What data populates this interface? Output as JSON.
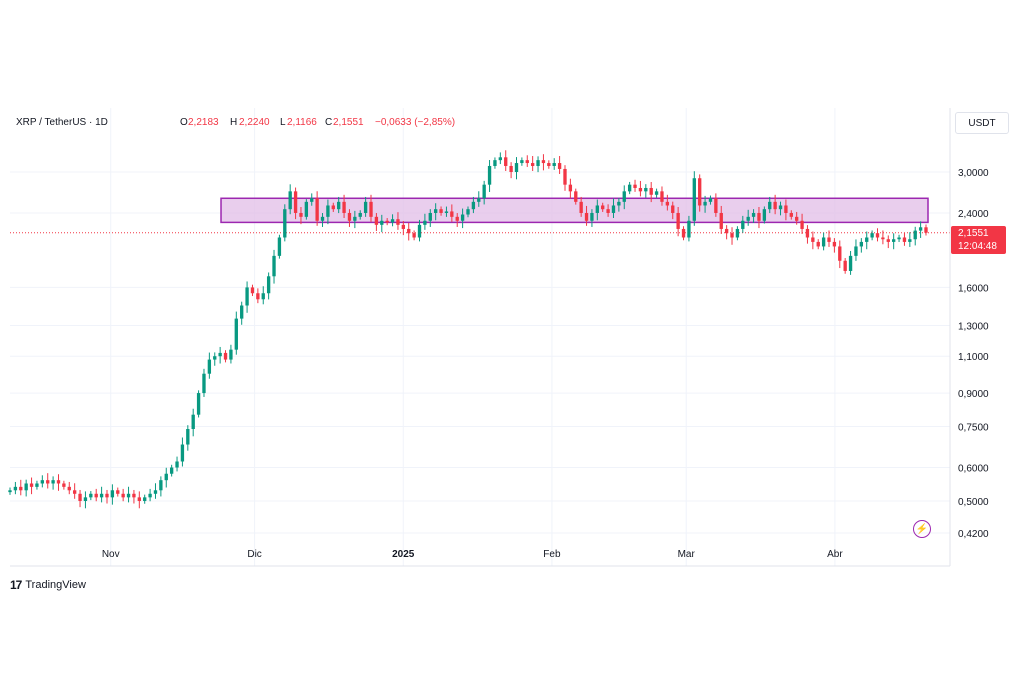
{
  "header": {
    "symbol": "XRP / TetherUS · 1D",
    "open_label": "O",
    "open": "2,2183",
    "high_label": "H",
    "high": "2,2240",
    "low_label": "L",
    "low": "2,1166",
    "close_label": "C",
    "close": "2,1551",
    "change": "−0,0633 (−2,85%)"
  },
  "unit": "USDT",
  "last_price": {
    "value": "2,1551",
    "countdown": "12:04:48",
    "color": "#f23645"
  },
  "brand": {
    "logo": "17",
    "name": "TradingView"
  },
  "colors": {
    "up": "#089981",
    "down": "#f23645",
    "zone_fill": "#e1bee7",
    "zone_stroke": "#9c27b0"
  },
  "chart_data": {
    "type": "candlestick",
    "y_scale": "log",
    "y_ticks": [
      {
        "value": 3.0,
        "label": "3,0000"
      },
      {
        "value": 2.4,
        "label": "2,4000"
      },
      {
        "value": 1.6,
        "label": "1,6000"
      },
      {
        "value": 1.3,
        "label": "1,3000"
      },
      {
        "value": 1.1,
        "label": "1,1000"
      },
      {
        "value": 0.9,
        "label": "0,9000"
      },
      {
        "value": 0.75,
        "label": "0,7500"
      },
      {
        "value": 0.6,
        "label": "0,6000"
      },
      {
        "value": 0.5,
        "label": "0,5000"
      },
      {
        "value": 0.42,
        "label": "0,4200"
      }
    ],
    "x_ticks": [
      {
        "date": "2024-11-01",
        "label": "Nov",
        "bold": false
      },
      {
        "date": "2024-12-01",
        "label": "Dic",
        "bold": false
      },
      {
        "date": "2025-01-01",
        "label": "2025",
        "bold": true
      },
      {
        "date": "2025-02-01",
        "label": "Feb",
        "bold": false
      },
      {
        "date": "2025-03-01",
        "label": "Mar",
        "bold": false
      },
      {
        "date": "2025-04-01",
        "label": "Abr",
        "bold": false
      }
    ],
    "x_range": [
      "2024-10-11",
      "2025-04-20"
    ],
    "ylim": [
      0.4,
      3.6
    ],
    "zone": {
      "from_date": "2024-11-24",
      "to_date": "2025-04-20",
      "low": 2.28,
      "high": 2.6
    },
    "last_close_line": 2.1551,
    "closes": [
      0.53,
      0.54,
      0.53,
      0.55,
      0.54,
      0.55,
      0.56,
      0.55,
      0.56,
      0.55,
      0.54,
      0.53,
      0.52,
      0.5,
      0.51,
      0.52,
      0.51,
      0.52,
      0.51,
      0.53,
      0.52,
      0.51,
      0.52,
      0.51,
      0.5,
      0.51,
      0.52,
      0.53,
      0.56,
      0.58,
      0.6,
      0.62,
      0.68,
      0.74,
      0.8,
      0.9,
      1.0,
      1.08,
      1.1,
      1.12,
      1.08,
      1.14,
      1.35,
      1.45,
      1.6,
      1.55,
      1.5,
      1.55,
      1.7,
      1.9,
      2.1,
      2.45,
      2.7,
      2.4,
      2.35,
      2.55,
      2.6,
      2.3,
      2.35,
      2.5,
      2.45,
      2.55,
      2.4,
      2.3,
      2.35,
      2.4,
      2.55,
      2.35,
      2.25,
      2.3,
      2.28,
      2.32,
      2.25,
      2.2,
      2.15,
      2.1,
      2.25,
      2.3,
      2.4,
      2.45,
      2.4,
      2.42,
      2.35,
      2.3,
      2.38,
      2.45,
      2.55,
      2.6,
      2.8,
      3.1,
      3.2,
      3.25,
      3.1,
      3.0,
      3.15,
      3.2,
      3.15,
      3.1,
      3.2,
      3.15,
      3.1,
      3.15,
      3.05,
      2.8,
      2.7,
      2.55,
      2.4,
      2.3,
      2.4,
      2.5,
      2.45,
      2.4,
      2.5,
      2.55,
      2.7,
      2.8,
      2.75,
      2.7,
      2.75,
      2.65,
      2.7,
      2.55,
      2.5,
      2.4,
      2.2,
      2.1,
      2.3,
      2.9,
      2.5,
      2.55,
      2.6,
      2.4,
      2.2,
      2.15,
      2.1,
      2.2,
      2.3,
      2.35,
      2.4,
      2.3,
      2.45,
      2.55,
      2.45,
      2.5,
      2.4,
      2.35,
      2.3,
      2.2,
      2.1,
      2.05,
      2.0,
      2.1,
      2.05,
      2.0,
      1.85,
      1.75,
      1.9,
      2.0,
      2.05,
      2.1,
      2.15,
      2.1,
      2.08,
      2.05,
      2.08,
      2.1,
      2.05,
      2.08,
      2.18,
      2.22,
      2.1551
    ]
  }
}
